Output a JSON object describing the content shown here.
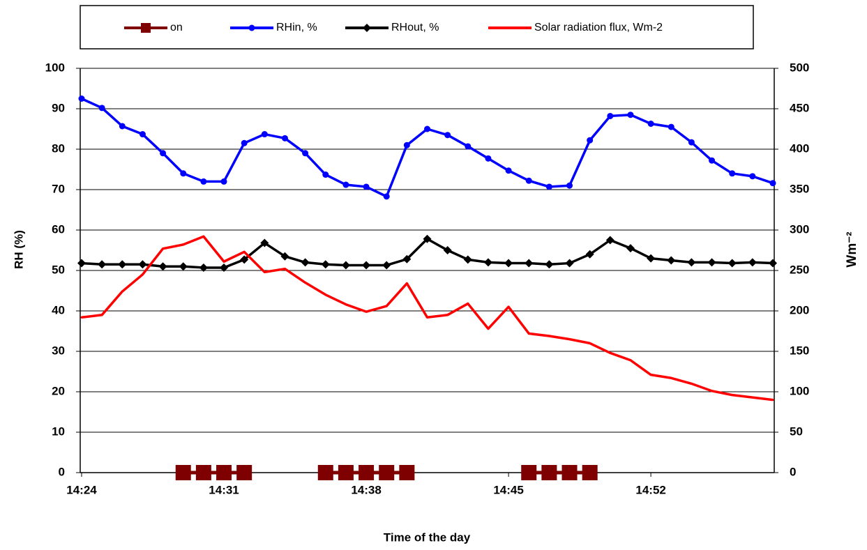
{
  "chart_data": {
    "type": "line",
    "categories": [
      "14:24",
      null,
      null,
      null,
      null,
      null,
      null,
      "14:31",
      null,
      null,
      null,
      null,
      null,
      null,
      "14:38",
      null,
      null,
      null,
      null,
      null,
      null,
      "14:45",
      null,
      null,
      null,
      null,
      null,
      null,
      "14:52",
      null,
      null,
      null,
      null,
      null,
      null
    ],
    "series": [
      {
        "name": "on",
        "color": "#7f0000",
        "marker": "square",
        "axis": "y",
        "values": [
          null,
          null,
          null,
          null,
          null,
          0,
          0,
          0,
          0,
          null,
          null,
          null,
          0,
          0,
          0,
          0,
          0,
          null,
          null,
          null,
          null,
          null,
          0,
          0,
          0,
          0,
          null,
          null,
          null,
          null,
          null,
          null,
          null,
          null,
          null
        ]
      },
      {
        "name": "RHin, %",
        "color": "#0000ff",
        "marker": "circle",
        "axis": "y",
        "values": [
          92.5,
          90.2,
          85.7,
          83.7,
          79,
          74,
          72,
          72,
          81.5,
          83.7,
          82.7,
          79,
          73.7,
          71.2,
          70.7,
          68.3,
          81,
          85,
          83.5,
          80.7,
          77.7,
          74.7,
          72.2,
          70.7,
          71,
          82.2,
          88.2,
          88.5,
          86.3,
          85.5,
          81.7,
          77.2,
          74,
          73.3,
          71.6
        ]
      },
      {
        "name": "RHout, %",
        "color": "#000000",
        "marker": "diamond",
        "axis": "y",
        "values": [
          51.8,
          51.5,
          51.5,
          51.5,
          51,
          51,
          50.7,
          50.7,
          52.7,
          56.8,
          53.5,
          52,
          51.5,
          51.3,
          51.3,
          51.3,
          52.8,
          57.8,
          55,
          52.7,
          52,
          51.8,
          51.8,
          51.5,
          51.8,
          54,
          57.5,
          55.5,
          53,
          52.5,
          52,
          52,
          51.8,
          52,
          51.8
        ]
      },
      {
        "name": "Solar radiation  flux, Wm-2",
        "color": "#ff0000",
        "marker": "dot",
        "axis": "y2",
        "values": [
          192,
          195,
          224,
          245,
          277,
          282,
          292,
          261,
          273,
          248,
          252,
          235,
          220,
          208,
          199,
          206,
          234,
          192,
          195,
          209,
          178,
          205,
          172,
          169,
          165,
          160,
          148,
          139,
          121,
          117,
          110,
          101,
          96,
          93,
          90
        ]
      }
    ],
    "ylim": [
      0,
      100
    ],
    "yticks": [
      0,
      10,
      20,
      30,
      40,
      50,
      60,
      70,
      80,
      90,
      100
    ],
    "y2lim": [
      0,
      500
    ],
    "y2ticks": [
      0,
      50,
      100,
      150,
      200,
      250,
      300,
      350,
      400,
      450,
      500
    ],
    "y_label": "RH (%)",
    "y2_label": "Wm⁻²",
    "x_label": "Time of the day",
    "grid": true,
    "legend": "top"
  }
}
